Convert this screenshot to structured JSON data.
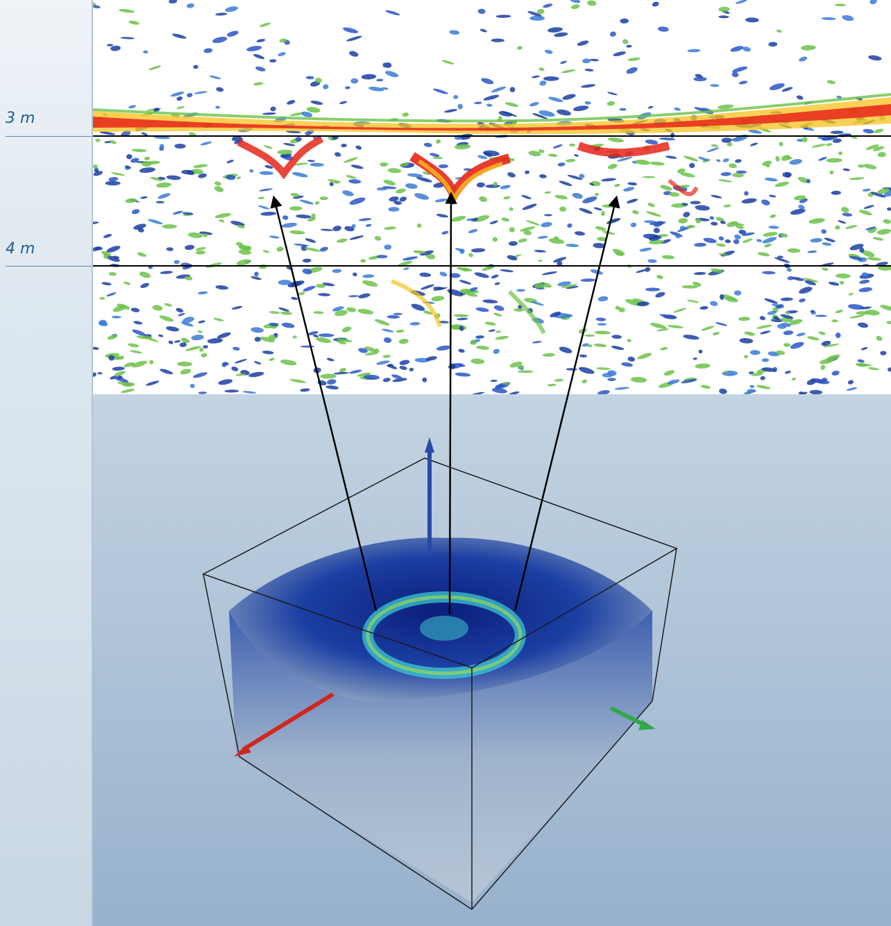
{
  "depth_markers": [
    {
      "label": "3 m"
    },
    {
      "label": "4 m"
    }
  ],
  "colors": {
    "reflection_high": "#e8261a",
    "reflection_mid": "#f7c21c",
    "reflection_low": "#6cc24a",
    "background_noise": "#1b3fa3",
    "axis_x": "#d0271d",
    "axis_y": "#32a84a",
    "axis_z": "#2a49a6",
    "arrow": "#000000"
  },
  "arrows_count_label": "",
  "icons": {
    "x_axis": "red-axis-arrow-icon",
    "y_axis": "green-axis-arrow-icon",
    "z_axis": "blue-axis-arrow-icon"
  }
}
